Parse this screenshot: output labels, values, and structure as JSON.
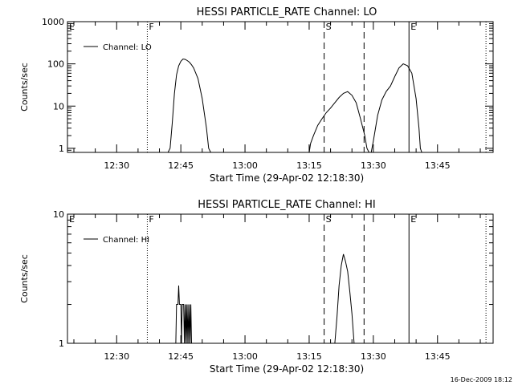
{
  "footer": {
    "timestamp": "16-Dec-2009 18:12"
  },
  "chart_data": [
    {
      "type": "line",
      "title": "HESSI PARTICLE_RATE Channel: LO",
      "xlabel": "Start Time (29-Apr-02 12:18:30)",
      "ylabel": "Counts/sec",
      "yscale": "log",
      "xlim": [
        "12:18:30",
        "13:58:00"
      ],
      "ylim": [
        0.8,
        1000
      ],
      "xticks": [
        "12:30",
        "12:45",
        "13:00",
        "13:15",
        "13:30",
        "13:45"
      ],
      "yticks": [
        "1",
        "10",
        "100",
        "1000"
      ],
      "legend": {
        "position": "top-left",
        "entries": [
          "Channel: LO"
        ]
      },
      "markers": [
        {
          "label": "E",
          "time": "12:18:30",
          "style": "solid"
        },
        {
          "label": "F",
          "time": "12:37:10",
          "style": "dotted"
        },
        {
          "label": "S",
          "time": "13:18:30",
          "style": "dashed"
        },
        {
          "label": "",
          "time": "13:27:50",
          "style": "dashed"
        },
        {
          "label": "E",
          "time": "13:38:20",
          "style": "solid"
        },
        {
          "label": "",
          "time": "13:56:20",
          "style": "dotted"
        }
      ],
      "series": [
        {
          "name": "Channel: LO",
          "segments": [
            [
              [
                "12:42:00",
                0.8
              ],
              [
                "12:42:30",
                1
              ],
              [
                "12:43:00",
                4
              ],
              [
                "12:43:30",
                20
              ],
              [
                "12:44:00",
                55
              ],
              [
                "12:44:30",
                90
              ],
              [
                "12:45:00",
                115
              ],
              [
                "12:45:30",
                130
              ],
              [
                "12:46:00",
                128
              ],
              [
                "12:46:30",
                120
              ],
              [
                "12:47:00",
                110
              ],
              [
                "12:47:30",
                95
              ],
              [
                "12:48:00",
                80
              ],
              [
                "12:49:00",
                45
              ],
              [
                "12:50:00",
                15
              ],
              [
                "12:51:00",
                3
              ],
              [
                "12:51:30",
                1
              ],
              [
                "12:52:00",
                0.8
              ]
            ],
            [
              [
                "13:15:00",
                0.8
              ],
              [
                "13:15:20",
                1.3
              ],
              [
                "13:16:00",
                2
              ],
              [
                "13:17:00",
                3.5
              ],
              [
                "13:18:00",
                5
              ],
              [
                "13:19:00",
                7
              ],
              [
                "13:20:00",
                9
              ],
              [
                "13:21:00",
                12
              ],
              [
                "13:22:00",
                16
              ],
              [
                "13:23:00",
                20
              ],
              [
                "13:24:00",
                22
              ],
              [
                "13:25:00",
                18
              ],
              [
                "13:26:00",
                12
              ],
              [
                "13:27:00",
                5
              ],
              [
                "13:28:00",
                2
              ],
              [
                "13:28:30",
                1
              ],
              [
                "13:29:00",
                0.8
              ]
            ],
            [
              [
                "13:29:30",
                0.8
              ],
              [
                "13:30:00",
                1.5
              ],
              [
                "13:31:00",
                6
              ],
              [
                "13:32:00",
                14
              ],
              [
                "13:33:00",
                22
              ],
              [
                "13:34:00",
                30
              ],
              [
                "13:35:00",
                50
              ],
              [
                "13:36:00",
                80
              ],
              [
                "13:37:00",
                100
              ],
              [
                "13:38:00",
                90
              ],
              [
                "13:39:00",
                60
              ],
              [
                "13:40:00",
                15
              ],
              [
                "13:40:40",
                3
              ],
              [
                "13:41:00",
                1
              ],
              [
                "13:41:20",
                0.8
              ]
            ]
          ]
        }
      ]
    },
    {
      "type": "line",
      "title": "HESSI PARTICLE_RATE Channel: HI",
      "xlabel": "Start Time (29-Apr-02 12:18:30)",
      "ylabel": "Counts/sec",
      "yscale": "log",
      "xlim": [
        "12:18:30",
        "13:58:00"
      ],
      "ylim": [
        1,
        10
      ],
      "xticks": [
        "12:30",
        "12:45",
        "13:00",
        "13:15",
        "13:30",
        "13:45"
      ],
      "yticks": [
        "1",
        "10"
      ],
      "legend": {
        "position": "top-left",
        "entries": [
          "Channel: HI"
        ]
      },
      "markers": [
        {
          "label": "E",
          "time": "12:18:30",
          "style": "solid"
        },
        {
          "label": "F",
          "time": "12:37:10",
          "style": "dotted"
        },
        {
          "label": "S",
          "time": "13:18:30",
          "style": "dashed"
        },
        {
          "label": "",
          "time": "13:27:50",
          "style": "dashed"
        },
        {
          "label": "E",
          "time": "13:38:20",
          "style": "solid"
        },
        {
          "label": "",
          "time": "13:56:20",
          "style": "dotted"
        }
      ],
      "series": [
        {
          "name": "Channel: HI",
          "segments": [
            [
              [
                "12:43:50",
                1
              ],
              [
                "12:44:00",
                2
              ],
              [
                "12:44:20",
                2
              ],
              [
                "12:44:30",
                2.8
              ],
              [
                "12:44:40",
                2
              ],
              [
                "12:45:00",
                2
              ],
              [
                "12:45:10",
                1
              ],
              [
                "12:45:20",
                2
              ],
              [
                "12:45:40",
                2
              ],
              [
                "12:45:50",
                1
              ],
              [
                "12:46:00",
                2
              ],
              [
                "12:46:10",
                1
              ],
              [
                "12:46:20",
                2
              ],
              [
                "12:46:30",
                1
              ],
              [
                "12:46:40",
                2
              ],
              [
                "12:46:50",
                1
              ],
              [
                "12:47:00",
                2
              ],
              [
                "12:47:10",
                1
              ],
              [
                "12:47:20",
                2
              ],
              [
                "12:47:30",
                1
              ]
            ],
            [
              [
                "13:21:00",
                1
              ],
              [
                "13:21:30",
                1.6
              ],
              [
                "13:22:00",
                2.8
              ],
              [
                "13:22:30",
                4
              ],
              [
                "13:23:00",
                4.9
              ],
              [
                "13:23:30",
                4.3
              ],
              [
                "13:24:00",
                3.6
              ],
              [
                "13:24:30",
                2.5
              ],
              [
                "13:25:00",
                1.7
              ],
              [
                "13:25:30",
                1
              ]
            ]
          ]
        }
      ]
    }
  ]
}
